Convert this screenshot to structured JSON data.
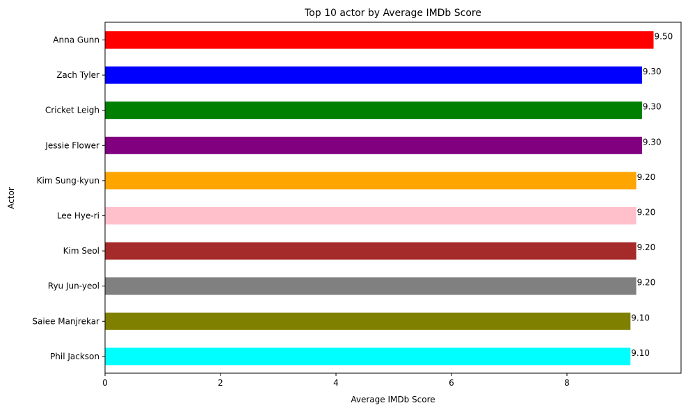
{
  "chart_data": {
    "type": "bar",
    "orientation": "horizontal",
    "title": "Top 10 actor by Average IMDb Score",
    "xlabel": "Average IMDb Score",
    "ylabel": "Actor",
    "xlim": [
      0,
      10
    ],
    "xticks": [
      0,
      2,
      4,
      6,
      8
    ],
    "grid": false,
    "categories": [
      "Anna Gunn",
      "Zach Tyler",
      "Cricket Leigh",
      "Jessie Flower",
      "Kim Sung-kyun",
      "Lee Hye-ri",
      "Kim Seol",
      "Ryu Jun-yeol",
      "Saiee Manjrekar",
      "Phil Jackson"
    ],
    "values": [
      9.5,
      9.3,
      9.3,
      9.3,
      9.2,
      9.2,
      9.2,
      9.2,
      9.1,
      9.1
    ],
    "data_labels": [
      "9.50",
      "9.30",
      "9.30",
      "9.30",
      "9.20",
      "9.20",
      "9.20",
      "9.20",
      "9.10",
      "9.10"
    ],
    "colors": [
      "#ff0000",
      "#0000ff",
      "#008000",
      "#800080",
      "#ffa500",
      "#ffc0cb",
      "#a52a2a",
      "#808080",
      "#808000",
      "#00ffff"
    ]
  }
}
